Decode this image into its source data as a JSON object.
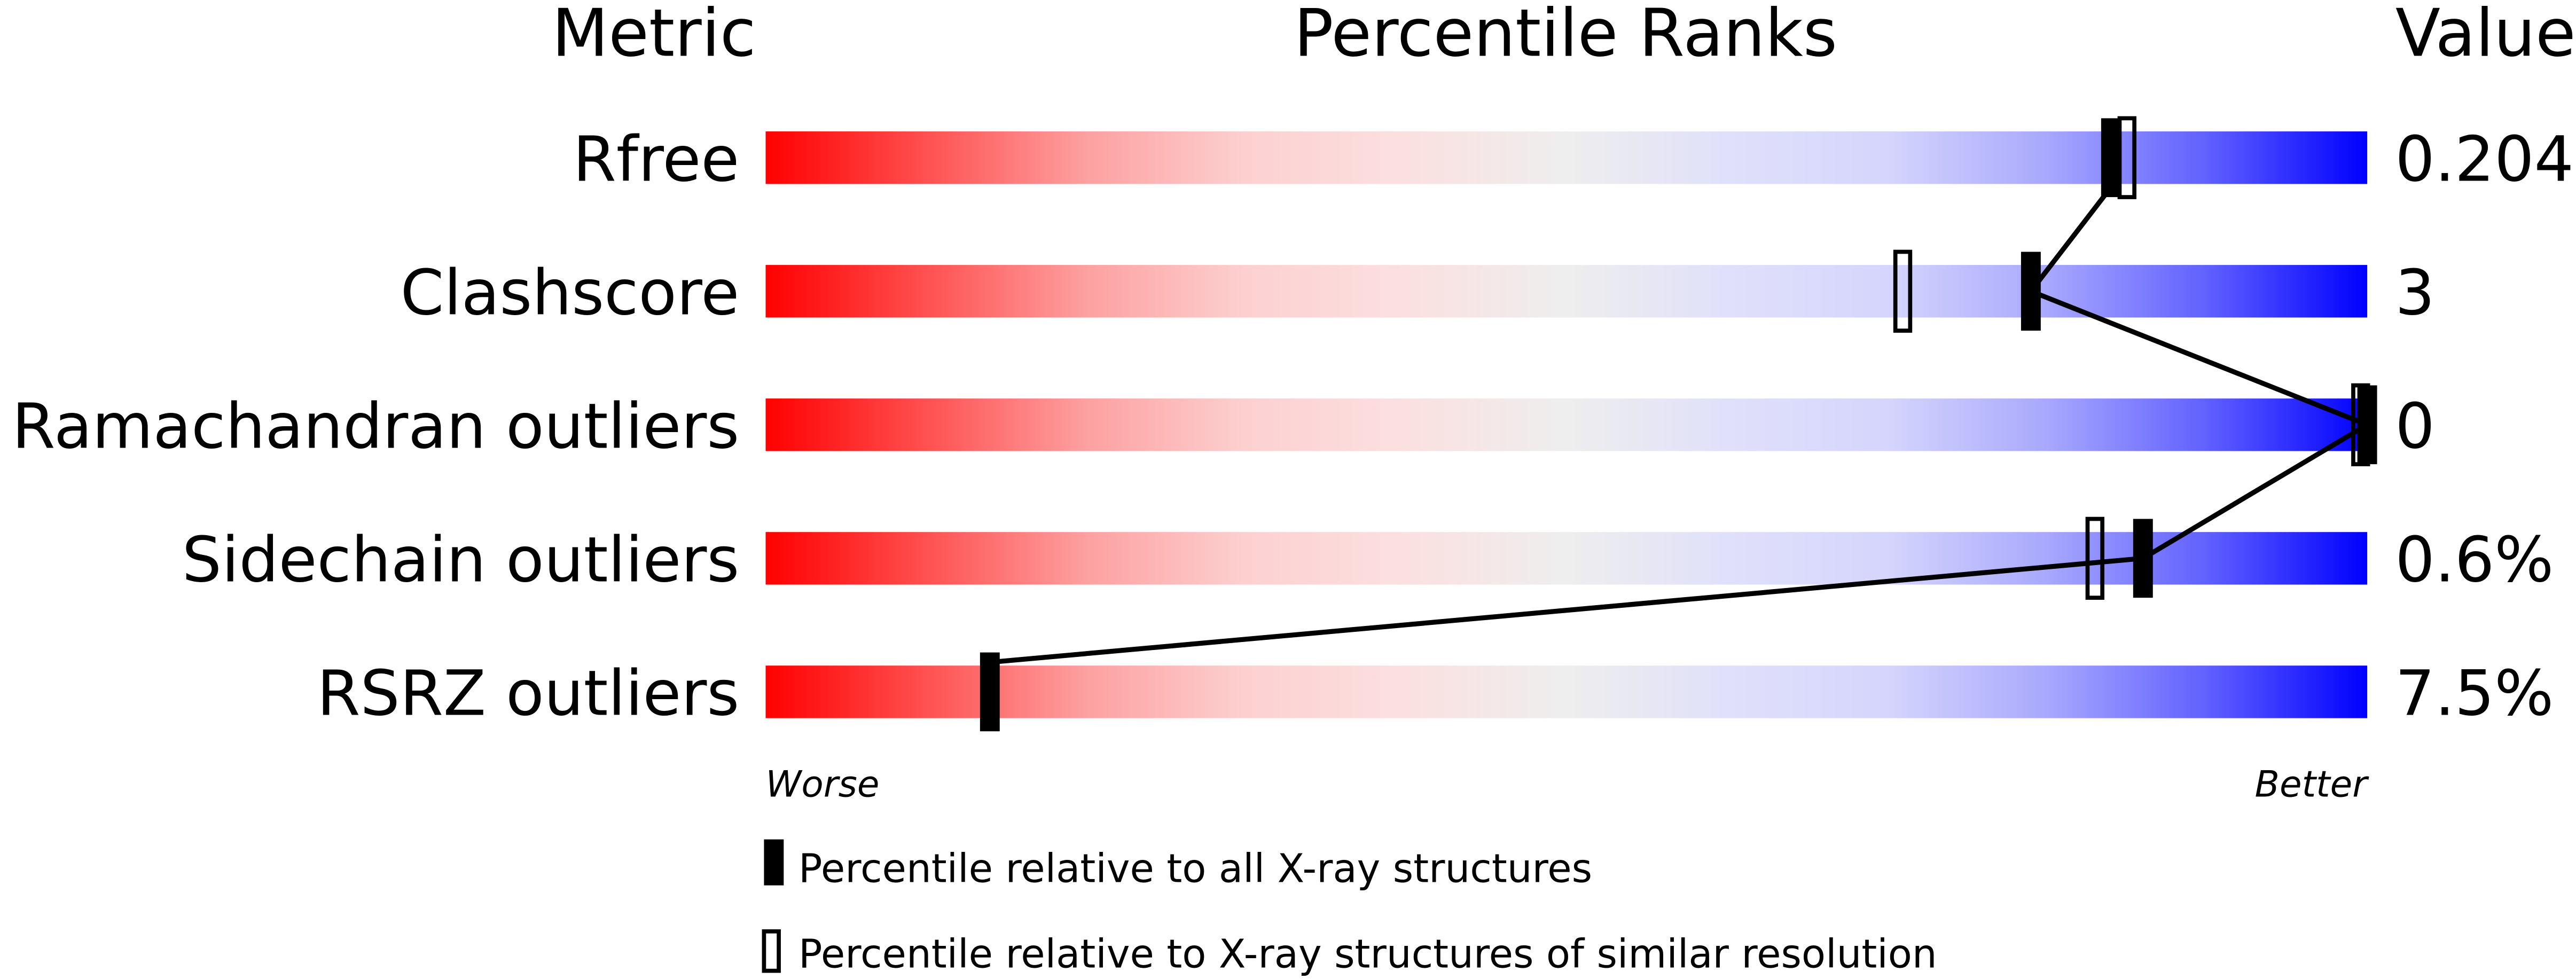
{
  "chart_data": {
    "type": "bar",
    "headers": {
      "metric": "Metric",
      "percentile": "Percentile Ranks",
      "value": "Value"
    },
    "xlim": [
      0,
      100
    ],
    "axis_labels": {
      "left": "Worse",
      "right": "Better"
    },
    "rows": [
      {
        "metric": "Rfree",
        "value": "0.204",
        "percentile_all": 84,
        "percentile_similar": 85
      },
      {
        "metric": "Clashscore",
        "value": "3",
        "percentile_all": 79,
        "percentile_similar": 71
      },
      {
        "metric": "Ramachandran outliers",
        "value": "0",
        "percentile_all": 100,
        "percentile_similar": 100
      },
      {
        "metric": "Sidechain outliers",
        "value": "0.6%",
        "percentile_all": 86,
        "percentile_similar": 83
      },
      {
        "metric": "RSRZ outliers",
        "value": "7.5%",
        "percentile_all": 14,
        "percentile_similar": null
      }
    ],
    "legend": [
      {
        "marker": "filled",
        "label": "Percentile relative to all X-ray structures"
      },
      {
        "marker": "hollow",
        "label": "Percentile relative to X-ray structures of similar resolution"
      }
    ],
    "colors": {
      "worse": "#ff0000",
      "middle": "#eeeeee",
      "better": "#0000ff",
      "marker": "#000000"
    }
  }
}
